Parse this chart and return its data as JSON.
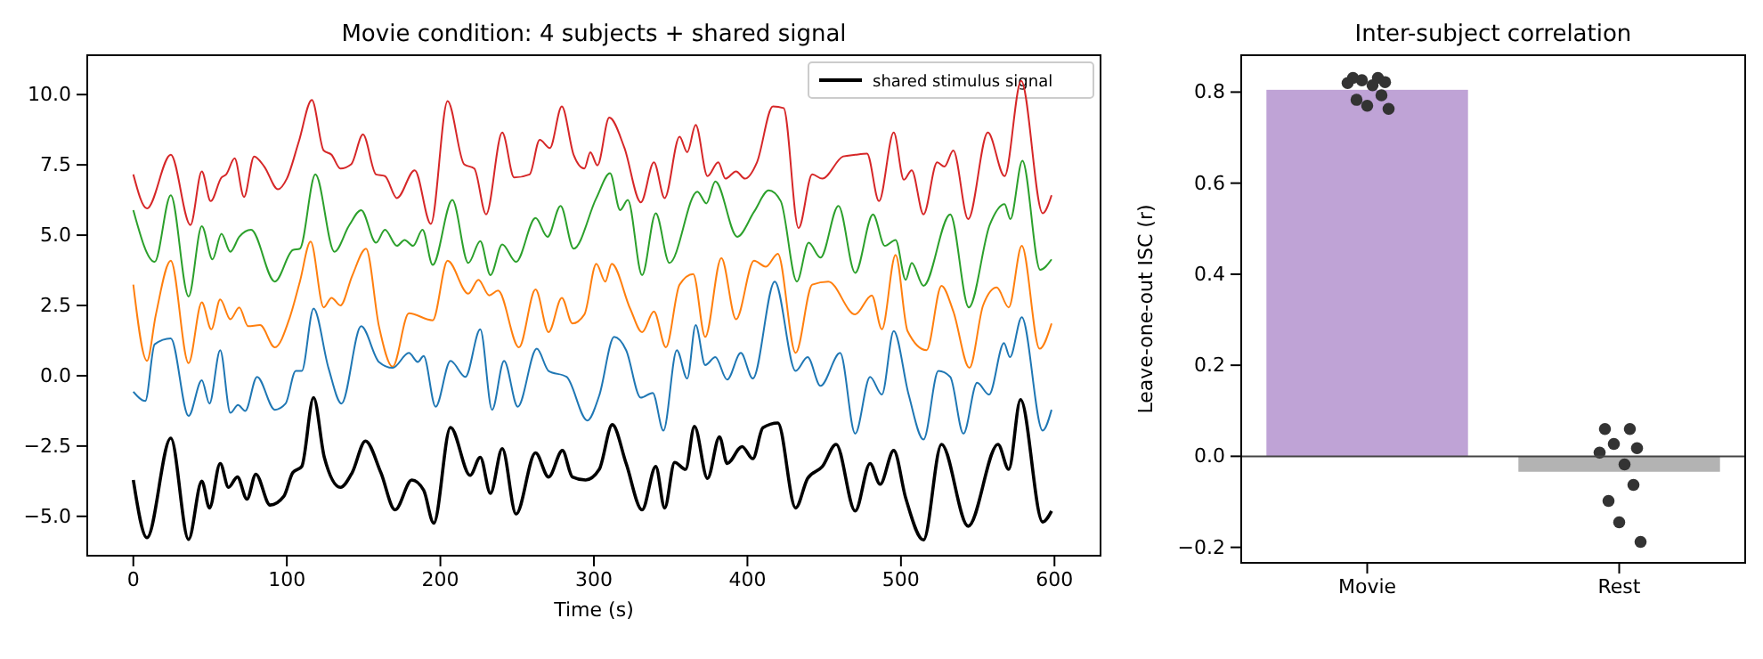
{
  "chart_data": [
    {
      "type": "line",
      "title": "Movie condition: 4 subjects + shared signal",
      "xlabel": "Time (s)",
      "xlim": [
        -30,
        630
      ],
      "ylim": [
        -6.4,
        11.4
      ],
      "xticks": [
        0,
        100,
        200,
        300,
        400,
        500,
        600
      ],
      "yticks": [
        {
          "value": -5,
          "label": "−5.0"
        },
        {
          "value": -2.5,
          "label": "−2.5"
        },
        {
          "value": 0,
          "label": "0.0"
        },
        {
          "value": 2.5,
          "label": "2.5"
        },
        {
          "value": 5,
          "label": "5.0"
        },
        {
          "value": 7.5,
          "label": "7.5"
        },
        {
          "value": 10,
          "label": "10.0"
        }
      ],
      "legend": "top right",
      "grid": false,
      "series": [
        {
          "color": "#d62728",
          "x": [
            0,
            8.9,
            24.4,
            37.2,
            44.6,
            50.4,
            57.4,
            60.5,
            66,
            72.1,
            78.7,
            85.3,
            94.2,
            100,
            107.8,
            116.3,
            124,
            129.1,
            134.9,
            141.9,
            149.6,
            158.1,
            163.9,
            171.7,
            183.3,
            193.8,
            204.7,
            215.5,
            222.1,
            229.8,
            240.3,
            248.1,
            258.1,
            264.7,
            271.3,
            279.1,
            286.8,
            293.8,
            297.7,
            302.3,
            310,
            319.8,
            330.6,
            339.1,
            346.1,
            355.8,
            360.8,
            366.3,
            374,
            381,
            385.7,
            392.6,
            398.4,
            406.2,
            416.6,
            423.6,
            433.3,
            442.2,
            448.8,
            462.4,
            470.2,
            477.9,
            485.7,
            495.3,
            501.9,
            507,
            514.7,
            523.6,
            528.3,
            534.1,
            543.8,
            556.6,
            567.5,
            578.3,
            592.3,
            598.1
          ],
          "values": [
            7.16,
            5.95,
            7.86,
            5.36,
            7.27,
            6.21,
            7.05,
            7.16,
            7.73,
            6.36,
            7.8,
            7.44,
            6.63,
            7.01,
            8.33,
            9.81,
            8.01,
            7.86,
            7.37,
            7.52,
            8.58,
            7.16,
            7.1,
            6.32,
            7.31,
            5.4,
            9.77,
            7.52,
            7.37,
            5.74,
            8.65,
            7.05,
            7.16,
            8.39,
            8.1,
            9.58,
            7.86,
            7.37,
            7.95,
            7.48,
            9.18,
            8.12,
            6.17,
            7.59,
            6.32,
            8.5,
            7.95,
            8.92,
            7.1,
            7.59,
            7.01,
            7.27,
            7.01,
            7.59,
            9.58,
            9.52,
            5.25,
            7.16,
            7.01,
            7.8,
            7.86,
            7.9,
            6.21,
            8.65,
            6.97,
            7.31,
            5.74,
            7.59,
            7.44,
            8.01,
            5.57,
            8.65,
            7.1,
            10.49,
            5.78,
            6.42
          ]
        },
        {
          "color": "#2ca02c",
          "x": [
            0,
            13.9,
            24.4,
            36,
            44.6,
            51.6,
            57.4,
            63.2,
            69,
            76.7,
            92.2,
            103.9,
            108.5,
            118.6,
            131,
            140.7,
            148.4,
            158.1,
            163.9,
            171.7,
            176.7,
            182.2,
            188.4,
            195,
            207.8,
            218.2,
            226,
            232.6,
            240.3,
            249.3,
            262,
            269.8,
            278.3,
            286.8,
            301.6,
            310.5,
            317.1,
            322.1,
            331.4,
            340.3,
            349.2,
            367.4,
            373.3,
            379.1,
            393.4,
            404.3,
            413.9,
            421.7,
            432.2,
            439.9,
            447.6,
            459.3,
            470.2,
            481.8,
            489.5,
            496.5,
            503.1,
            507,
            514.7,
            532.1,
            544.2,
            557.8,
            567.5,
            571.3,
            579.1,
            590.7,
            598.1
          ],
          "values": [
            5.89,
            4.05,
            6.42,
            2.82,
            5.32,
            4.14,
            5.05,
            4.41,
            4.94,
            5.19,
            3.35,
            4.47,
            4.52,
            7.16,
            4.41,
            5.36,
            5.89,
            4.73,
            5.19,
            4.62,
            4.83,
            4.62,
            5.19,
            3.94,
            6.25,
            4.01,
            4.79,
            3.58,
            4.67,
            4.05,
            5.61,
            4.94,
            6.04,
            4.52,
            6.32,
            7.2,
            5.89,
            6.25,
            3.58,
            5.78,
            4.01,
            6.55,
            6.13,
            6.91,
            4.94,
            5.83,
            6.59,
            6.21,
            3.35,
            4.73,
            4.2,
            6.04,
            3.66,
            5.74,
            4.62,
            4.83,
            3.41,
            4.01,
            3.2,
            5.74,
            2.43,
            5.36,
            6.1,
            5.57,
            7.65,
            3.77,
            4.14
          ]
        },
        {
          "color": "#ff7f0e",
          "x": [
            0,
            8.9,
            14.7,
            24.4,
            36,
            44.6,
            50.8,
            56.6,
            63.2,
            69,
            74.8,
            82.6,
            92.2,
            101.9,
            108.5,
            115.5,
            124,
            129.1,
            134.9,
            142.6,
            151.6,
            160,
            168.9,
            179.5,
            195,
            204.7,
            218.2,
            224.8,
            231.8,
            237.6,
            251.2,
            262,
            270.5,
            279.1,
            286,
            293.8,
            301.6,
            307.4,
            311.6,
            323.6,
            331.4,
            339.1,
            346.9,
            355.8,
            364.7,
            372.5,
            383,
            392.6,
            404.3,
            412,
            419.8,
            431.4,
            442.2,
            452.7,
            470.2,
            481,
            487.6,
            496.5,
            504.3,
            516.7,
            526.4,
            534.1,
            544.6,
            553.5,
            562.4,
            570.2,
            578.7,
            590.3,
            598.1
          ],
          "values": [
            3.24,
            0.53,
            2.18,
            4.09,
            0.45,
            2.61,
            1.65,
            2.71,
            2.01,
            2.43,
            1.76,
            1.8,
            1.01,
            2.07,
            3.35,
            4.77,
            2.43,
            2.77,
            2.5,
            3.56,
            4.52,
            1.76,
            0.32,
            2.22,
            1.97,
            4.09,
            2.92,
            3.41,
            2.86,
            3.03,
            1.01,
            3.07,
            1.55,
            2.77,
            1.86,
            2.18,
            3.98,
            3.35,
            3.98,
            2.39,
            1.55,
            2.29,
            1.01,
            3.24,
            3.62,
            1.38,
            4.19,
            2.01,
            4.09,
            3.88,
            4.34,
            0.81,
            3.24,
            3.35,
            2.18,
            2.86,
            1.65,
            4.3,
            1.59,
            0.91,
            3.2,
            2.29,
            0.28,
            2.5,
            3.14,
            2.43,
            4.62,
            0.96,
            1.86
          ]
        },
        {
          "color": "#1f77b4",
          "x": [
            0,
            7.8,
            13.9,
            24.4,
            36,
            44.6,
            49.6,
            56.6,
            63.2,
            68.2,
            72.9,
            80.6,
            92.2,
            99.2,
            105.8,
            109.7,
            117.4,
            127.1,
            135.6,
            148.4,
            160,
            168.9,
            179.5,
            185.3,
            189.1,
            196.9,
            206.6,
            216.3,
            226,
            233.7,
            241.5,
            250.4,
            262.8,
            270.5,
            282.2,
            295.7,
            303.5,
            313.2,
            321,
            330.5,
            338.3,
            345.3,
            354,
            360.8,
            366.3,
            372.5,
            379.1,
            386.8,
            395.7,
            403.5,
            417.8,
            431.4,
            439.2,
            447.6,
            460.4,
            470.2,
            479.9,
            487.6,
            495.3,
            505,
            514.7,
            524.4,
            532.1,
            540.7,
            549.6,
            557.4,
            567.1,
            571,
            578.7,
            592.3,
            598.1
          ],
          "values": [
            -0.57,
            -0.9,
            1.12,
            1.33,
            -1.43,
            -0.16,
            -0.99,
            0.91,
            -1.32,
            -1.04,
            -1.25,
            -0.04,
            -1.21,
            -0.99,
            0.17,
            0.17,
            2.39,
            0.28,
            -0.99,
            1.76,
            0.49,
            0.28,
            0.81,
            0.49,
            0.7,
            -1.1,
            0.53,
            -0.04,
            1.65,
            -1.21,
            0.53,
            -1.1,
            0.96,
            0.17,
            -0.04,
            -1.59,
            -0.7,
            1.38,
            0.91,
            -0.78,
            -0.61,
            -1.95,
            0.91,
            -0.1,
            1.8,
            0.38,
            0.66,
            -0.14,
            0.81,
            -0.1,
            3.35,
            0.17,
            0.66,
            -0.36,
            0.81,
            -2.06,
            -0.04,
            -0.67,
            1.59,
            -0.67,
            -2.27,
            0.17,
            -0.04,
            -2.06,
            -0.25,
            -0.67,
            1.16,
            0.66,
            2.08,
            -1.95,
            -1.21
          ]
        },
        {
          "name": "shared stimulus signal",
          "color": "#000000",
          "x": [
            0,
            8.9,
            24.4,
            36,
            44.6,
            49.6,
            56.6,
            62,
            67.8,
            74,
            79.8,
            89.1,
            98,
            103.9,
            109.7,
            117.4,
            124.4,
            134.9,
            142.6,
            151.2,
            161.2,
            170.5,
            181.4,
            189.1,
            195.7,
            206.6,
            219.4,
            226,
            232.6,
            240.3,
            249.3,
            262,
            270.5,
            279.5,
            286,
            294.6,
            303.5,
            312,
            321,
            331.4,
            340.3,
            346.1,
            352.6,
            359.7,
            365.5,
            374,
            381.8,
            386.8,
            396.5,
            403.5,
            410.1,
            419.8,
            431.4,
            439.2,
            448.8,
            457.8,
            470.2,
            479.9,
            486.4,
            495.3,
            503.1,
            514.7,
            526.4,
            543.8,
            563.2,
            570.2,
            577.9,
            592.3,
            598.1
          ],
          "values": [
            -3.71,
            -5.76,
            -2.22,
            -5.82,
            -3.75,
            -4.7,
            -3.12,
            -3.97,
            -3.6,
            -4.39,
            -3.5,
            -4.6,
            -4.29,
            -3.44,
            -3.23,
            -0.78,
            -2.9,
            -3.97,
            -3.44,
            -2.32,
            -3.44,
            -4.77,
            -3.71,
            -4.07,
            -5.24,
            -1.84,
            -3.54,
            -2.9,
            -4.18,
            -2.59,
            -4.92,
            -2.74,
            -3.6,
            -2.66,
            -3.6,
            -3.71,
            -3.33,
            -1.74,
            -3.12,
            -4.77,
            -3.23,
            -4.7,
            -3.08,
            -3.33,
            -1.8,
            -3.65,
            -2.17,
            -3.12,
            -2.52,
            -2.95,
            -1.85,
            -1.68,
            -4.7,
            -3.65,
            -3.23,
            -2.44,
            -4.81,
            -3.12,
            -3.86,
            -2.66,
            -4.35,
            -5.84,
            -2.44,
            -5.35,
            -2.44,
            -3.33,
            -0.85,
            -5.2,
            -4.81
          ]
        }
      ]
    },
    {
      "type": "bar",
      "title": "Inter-subject correlation",
      "ylabel": "Leave-one-out ISC (r)",
      "categories": [
        "Movie",
        "Rest"
      ],
      "ylim": [
        -0.234,
        0.881
      ],
      "yticks": [
        {
          "value": -0.2,
          "label": "−0.2"
        },
        {
          "value": 0,
          "label": "0.0"
        },
        {
          "value": 0.2,
          "label": "0.2"
        },
        {
          "value": 0.4,
          "label": "0.4"
        },
        {
          "value": 0.6,
          "label": "0.6"
        },
        {
          "value": 0.8,
          "label": "0.8"
        }
      ],
      "grid": false,
      "ref_lines": [
        {
          "axis": "y",
          "value": 0,
          "color": "#444444"
        }
      ],
      "series": [
        {
          "colors": [
            "#bfa3d6",
            "#b3b3b3"
          ],
          "values": [
            0.805,
            -0.034
          ]
        },
        {
          "type": "scatter",
          "marker": "circle",
          "color": "#333333",
          "x": [
            "Movie",
            "Movie",
            "Movie",
            "Movie",
            "Movie",
            "Movie",
            "Movie",
            "Movie",
            "Movie",
            "Movie",
            "Rest",
            "Rest",
            "Rest",
            "Rest",
            "Rest",
            "Rest",
            "Rest",
            "Rest",
            "Rest",
            "Rest"
          ],
          "values": [
            0.831,
            0.831,
            0.826,
            0.822,
            0.82,
            0.815,
            0.793,
            0.783,
            0.77,
            0.763,
            0.06,
            0.06,
            0.027,
            0.018,
            0.008,
            -0.018,
            -0.063,
            -0.098,
            -0.145,
            -0.188
          ]
        }
      ]
    }
  ]
}
